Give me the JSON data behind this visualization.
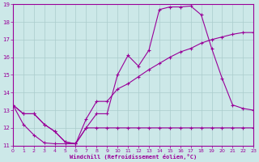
{
  "xlabel": "Windchill (Refroidissement éolien,°C)",
  "background_color": "#cce8e8",
  "line_color": "#990099",
  "grid_color": "#aacccc",
  "xlim": [
    0,
    23
  ],
  "ylim": [
    11,
    19
  ],
  "yticks": [
    11,
    12,
    13,
    14,
    15,
    16,
    17,
    18,
    19
  ],
  "xticks": [
    0,
    1,
    2,
    3,
    4,
    5,
    6,
    7,
    8,
    9,
    10,
    11,
    12,
    13,
    14,
    15,
    16,
    17,
    18,
    19,
    20,
    21,
    22,
    23
  ],
  "line1_x": [
    0,
    1,
    2,
    3,
    4,
    5,
    6,
    7,
    8,
    9,
    10,
    11,
    12,
    13,
    14,
    15,
    16,
    17,
    18,
    19,
    20,
    21,
    22,
    23
  ],
  "line1_y": [
    13.3,
    12.8,
    12.8,
    12.2,
    11.8,
    11.2,
    11.1,
    12.0,
    12.8,
    12.8,
    15.0,
    16.1,
    15.5,
    16.4,
    18.7,
    18.85,
    18.85,
    18.9,
    18.4,
    16.5,
    14.8,
    13.3,
    13.1,
    13.0
  ],
  "line2_x": [
    0,
    1,
    2,
    3,
    4,
    5,
    6,
    7,
    8,
    9,
    10,
    11,
    12,
    13,
    14,
    15,
    16,
    17,
    18,
    19,
    20,
    21,
    22,
    23
  ],
  "line2_y": [
    13.3,
    12.8,
    12.8,
    12.2,
    11.8,
    11.2,
    11.1,
    12.5,
    13.5,
    13.5,
    14.2,
    14.5,
    14.9,
    15.3,
    15.65,
    16.0,
    16.3,
    16.5,
    16.8,
    17.0,
    17.15,
    17.3,
    17.4,
    17.4
  ],
  "line3_x": [
    0,
    1,
    2,
    3,
    4,
    5,
    6,
    7,
    8,
    9,
    10,
    11,
    12,
    13,
    14,
    15,
    16,
    17,
    18,
    19,
    20,
    21,
    22,
    23
  ],
  "line3_y": [
    13.3,
    12.2,
    11.6,
    11.15,
    11.1,
    11.1,
    11.1,
    12.0,
    12.0,
    12.0,
    12.0,
    12.0,
    12.0,
    12.0,
    12.0,
    12.0,
    12.0,
    12.0,
    12.0,
    12.0,
    12.0,
    12.0,
    12.0,
    12.0
  ]
}
